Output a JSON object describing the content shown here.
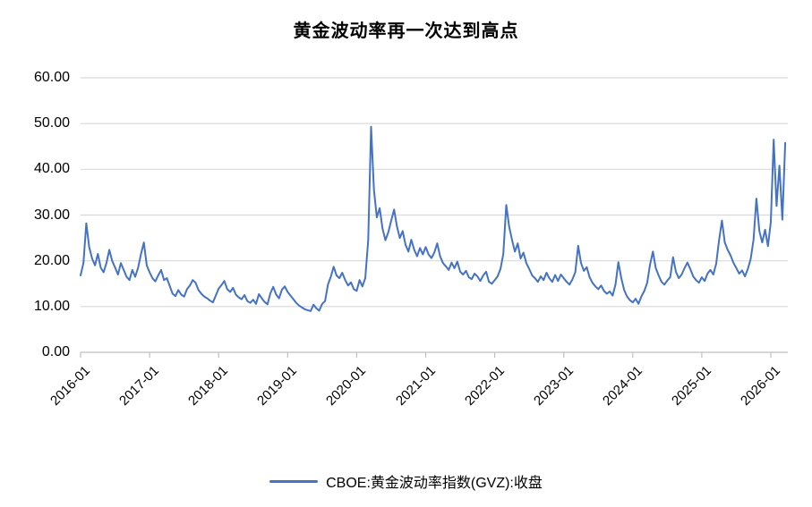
{
  "title": "黄金波动率再一次达到高点",
  "legend": {
    "label": "CBOE:黄金波动率指数(GVZ):收盘"
  },
  "colors": {
    "line": "#4472C4",
    "grid": "#D9D9D9",
    "axis": "#BFBFBF",
    "text": "#000000"
  },
  "chart_data": {
    "type": "line",
    "title": "黄金波动率再一次达到高点",
    "xlabel": "",
    "ylabel": "",
    "grid": "horizontal",
    "legend_position": "bottom",
    "ylim": [
      0,
      60
    ],
    "y_ticks": [
      0,
      10,
      20,
      30,
      40,
      50,
      60
    ],
    "y_tick_labels": [
      "0.00",
      "10.00",
      "20.00",
      "30.00",
      "40.00",
      "50.00",
      "60.00"
    ],
    "x_tick_years": [
      2016,
      2017,
      2018,
      2019,
      2020,
      2021,
      2022,
      2023,
      2024,
      2025,
      2026
    ],
    "x_tick_labels": [
      "2016-01",
      "2017-01",
      "2018-01",
      "2019-01",
      "2020-01",
      "2021-01",
      "2022-01",
      "2023-01",
      "2024-01",
      "2025-01",
      "2026-01"
    ],
    "xlim_years": [
      2016.0,
      2026.25
    ],
    "series": [
      {
        "name": "CBOE:黄金波动率指数(GVZ):收盘",
        "color": "#4472C4",
        "x_start_year": 2016.0,
        "x_step_years": 0.0416667,
        "values": [
          16.8,
          19.5,
          28.2,
          23.0,
          20.5,
          19.0,
          21.5,
          18.5,
          17.5,
          19.5,
          22.4,
          20.0,
          18.5,
          17.0,
          19.5,
          18.0,
          16.5,
          15.8,
          18.0,
          16.5,
          18.5,
          21.5,
          24.0,
          19.0,
          17.5,
          16.2,
          15.5,
          16.8,
          18.0,
          15.8,
          16.2,
          14.5,
          12.8,
          12.3,
          13.6,
          12.6,
          12.2,
          13.8,
          14.6,
          15.8,
          15.2,
          13.6,
          12.8,
          12.2,
          11.8,
          11.3,
          10.9,
          12.4,
          13.9,
          14.7,
          15.6,
          13.8,
          13.2,
          14.1,
          12.6,
          12.0,
          11.6,
          12.5,
          11.2,
          10.8,
          11.5,
          10.6,
          12.7,
          11.8,
          11.0,
          10.5,
          12.9,
          14.3,
          12.6,
          11.8,
          13.7,
          14.4,
          13.2,
          12.4,
          11.6,
          10.8,
          10.2,
          9.8,
          9.4,
          9.2,
          9.0,
          10.4,
          9.6,
          9.1,
          10.6,
          11.2,
          14.8,
          16.5,
          18.7,
          16.8,
          16.2,
          17.4,
          15.8,
          14.6,
          15.3,
          13.8,
          13.4,
          15.8,
          14.4,
          16.2,
          24.5,
          49.3,
          35.5,
          29.5,
          31.5,
          27.0,
          24.5,
          26.2,
          28.8,
          31.2,
          27.5,
          25.0,
          26.5,
          23.5,
          22.0,
          24.6,
          22.4,
          21.0,
          22.8,
          21.4,
          23.0,
          21.4,
          20.6,
          21.8,
          23.8,
          21.0,
          19.5,
          18.8,
          18.0,
          19.6,
          18.4,
          19.8,
          17.6,
          17.0,
          17.8,
          16.4,
          16.0,
          17.2,
          16.6,
          15.6,
          16.8,
          17.6,
          15.4,
          15.0,
          15.8,
          16.6,
          18.2,
          21.5,
          32.2,
          27.5,
          24.6,
          22.0,
          23.8,
          20.5,
          21.8,
          19.5,
          18.2,
          16.8,
          16.2,
          15.4,
          16.6,
          15.8,
          17.4,
          16.2,
          15.4,
          16.9,
          15.6,
          17.0,
          16.2,
          15.4,
          14.8,
          15.9,
          17.5,
          23.3,
          19.5,
          17.8,
          18.6,
          16.4,
          15.2,
          14.4,
          13.8,
          14.6,
          13.4,
          12.8,
          13.3,
          12.4,
          14.8,
          19.7,
          16.2,
          13.6,
          12.2,
          11.4,
          10.9,
          11.7,
          10.6,
          12.2,
          13.4,
          15.2,
          19.2,
          22.0,
          18.4,
          16.8,
          15.4,
          14.8,
          15.7,
          16.4,
          20.8,
          17.6,
          16.2,
          17.0,
          18.4,
          19.6,
          18.2,
          16.6,
          15.8,
          15.2,
          16.4,
          15.6,
          17.2,
          18.0,
          17.0,
          19.4,
          24.5,
          28.8,
          24.0,
          22.4,
          21.2,
          19.6,
          18.4,
          17.2,
          17.9,
          16.6,
          18.2,
          20.4,
          24.6,
          33.6,
          26.5,
          24.0,
          26.8,
          23.2,
          28.5,
          46.5,
          32.0,
          40.8,
          29.0,
          45.8
        ]
      }
    ]
  }
}
